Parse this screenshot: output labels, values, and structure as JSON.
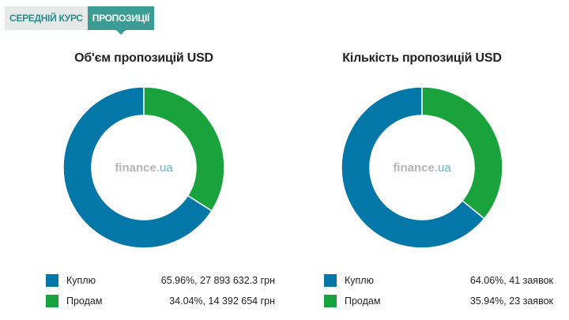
{
  "tabs": [
    {
      "label": "СЕРЕДНІЙ КУРС",
      "active": false
    },
    {
      "label": "ПРОПОЗИЦІЇ",
      "active": true
    }
  ],
  "colors": {
    "buy": "#0378a8",
    "sell": "#1aa33d",
    "watermark_gray": "#b5b5b5",
    "watermark_teal": "#67b3c4"
  },
  "watermark": {
    "brand": "finance",
    "tld": ".ua"
  },
  "chart_data": [
    {
      "type": "pie",
      "title": "Об'єм пропозицій USD",
      "categories": [
        "Куплю",
        "Продам"
      ],
      "values": [
        65.96,
        34.04
      ],
      "labels": [
        "65.96%, 27 893 632.3 грн",
        "34.04%, 14 392 654 грн"
      ],
      "legend": "bottom"
    },
    {
      "type": "pie",
      "title": "Кількість пропозицій USD",
      "categories": [
        "Куплю",
        "Продам"
      ],
      "values": [
        64.06,
        35.94
      ],
      "labels": [
        "64.06%, 41 заявок",
        "35.94%, 23 заявок"
      ],
      "legend": "bottom"
    }
  ]
}
